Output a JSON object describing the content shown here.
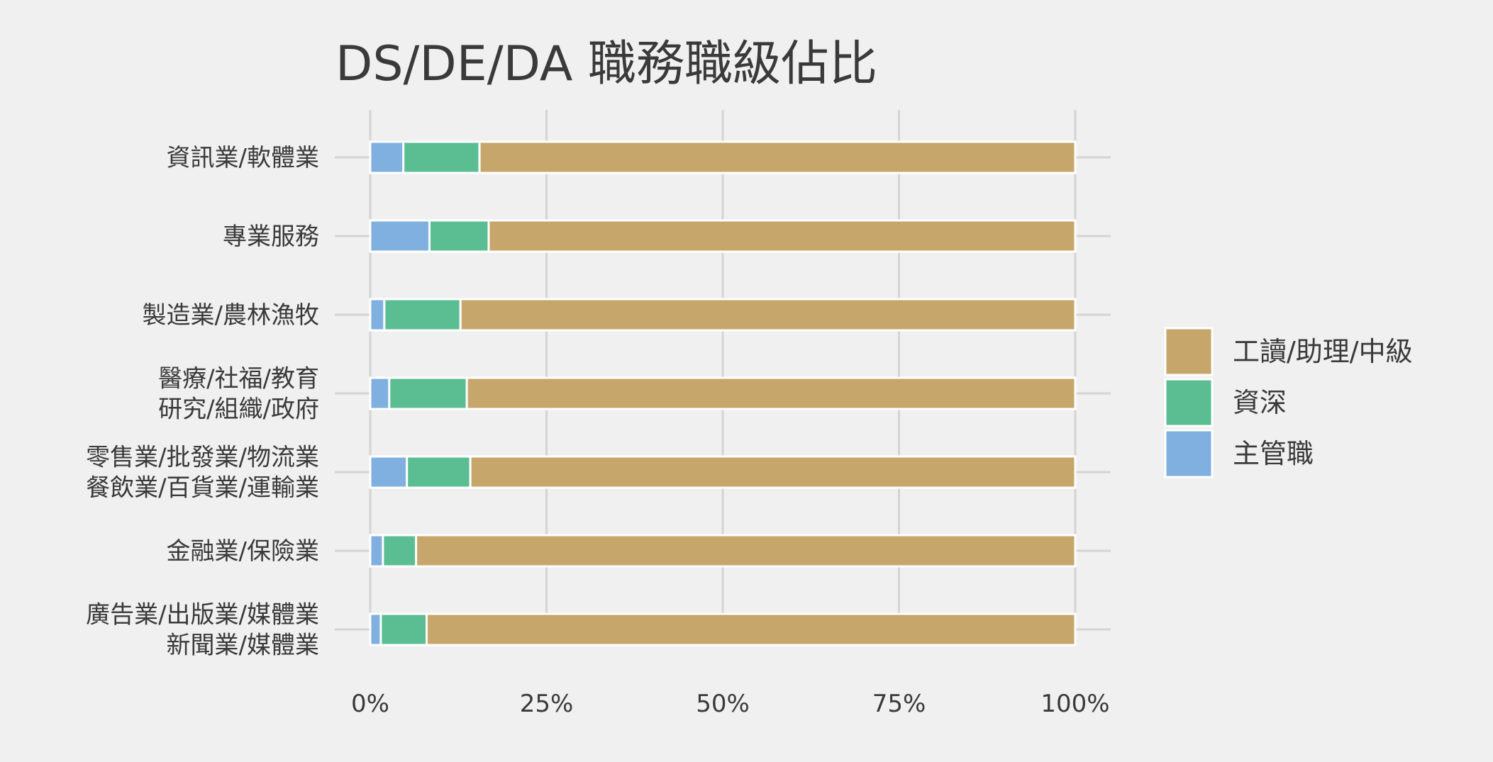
{
  "chart_data": {
    "type": "bar",
    "orientation": "horizontal",
    "stacked": true,
    "normalized": true,
    "title": "DS/DE/DA 職務職級佔比",
    "xlabel": "",
    "ylabel": "",
    "xlim": [
      0,
      100
    ],
    "x_ticks": [
      {
        "value": 0,
        "label": "0%"
      },
      {
        "value": 25,
        "label": "25%"
      },
      {
        "value": 50,
        "label": "50%"
      },
      {
        "value": 75,
        "label": "75%"
      },
      {
        "value": 100,
        "label": "100%"
      }
    ],
    "grid": true,
    "legend_position": "right",
    "categories": [
      [
        "資訊業/軟體業"
      ],
      [
        "專業服務"
      ],
      [
        "製造業/農林漁牧"
      ],
      [
        "醫療/社福/教育",
        "研究/組織/政府"
      ],
      [
        "零售業/批發業/物流業",
        "餐飲業/百貨業/運輸業"
      ],
      [
        "金融業/保險業"
      ],
      [
        "廣告業/出版業/媒體業",
        "新聞業/媒體業"
      ]
    ],
    "series": [
      {
        "name": "主管職",
        "color": "#7fb0e0",
        "values": [
          4.7,
          8.4,
          2.0,
          2.7,
          5.2,
          1.8,
          1.5
        ]
      },
      {
        "name": "資深",
        "color": "#5bbe93",
        "values": [
          10.8,
          8.4,
          10.8,
          11.0,
          9.0,
          4.7,
          6.5
        ]
      },
      {
        "name": "工讀/助理/中級",
        "color": "#c6a66b",
        "values": [
          84.5,
          83.2,
          87.2,
          86.3,
          85.8,
          93.5,
          92.0
        ]
      }
    ],
    "legend_order": [
      "工讀/助理/中級",
      "資深",
      "主管職"
    ]
  }
}
